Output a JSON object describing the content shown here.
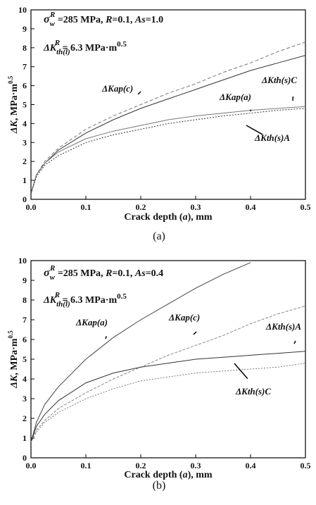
{
  "chart_data": [
    {
      "type": "line",
      "caption": "(a)",
      "x_label_parts": [
        "Crack depth (",
        "a",
        "), mm"
      ],
      "y_label_parts": [
        "ΔK",
        ", MPa·m",
        "0.5"
      ],
      "annotations": [
        {
          "parts": [
            "σ",
            "w",
            "R",
            " =285 MPa, ",
            "R",
            "=0.1, ",
            "As",
            "=1.0"
          ]
        },
        {
          "parts": [
            "ΔK",
            "th(l)",
            "R",
            " = 6.3 MPa·m",
            "0.5"
          ]
        }
      ],
      "x": [
        0,
        0.01,
        0.025,
        0.05,
        0.1,
        0.15,
        0.2,
        0.25,
        0.3,
        0.35,
        0.4,
        0.45,
        0.5
      ],
      "series": [
        {
          "name": "ΔKap(c)",
          "color": "#777777",
          "values": [
            0.3,
            1.3,
            2.0,
            2.7,
            3.7,
            4.4,
            5.0,
            5.6,
            6.1,
            6.7,
            7.2,
            7.8,
            8.3
          ]
        },
        {
          "name": "ΔKth(s)C",
          "color": "#333333",
          "values": [
            0.3,
            1.3,
            1.9,
            2.6,
            3.5,
            4.2,
            4.8,
            5.3,
            5.8,
            6.3,
            6.8,
            7.2,
            7.6
          ]
        },
        {
          "name": "ΔKap(a)",
          "color": "#777777",
          "values": [
            0.3,
            1.3,
            1.9,
            2.5,
            3.2,
            3.6,
            3.9,
            4.2,
            4.4,
            4.55,
            4.7,
            4.8,
            4.9
          ]
        },
        {
          "name": "ΔKth(s)A",
          "color": "#333333",
          "values": [
            0.3,
            1.2,
            1.8,
            2.3,
            3.0,
            3.4,
            3.7,
            4.0,
            4.2,
            4.4,
            4.55,
            4.7,
            4.8
          ]
        }
      ],
      "xlim": [
        0,
        0.5
      ],
      "ylim": [
        0,
        10
      ],
      "xticks": [
        {
          "value": 0,
          "label": "0.0"
        },
        0.1,
        0.2,
        0.3,
        0.4,
        0.5
      ],
      "yticks": [
        0,
        1,
        2,
        3,
        4,
        5,
        6,
        7,
        8,
        9,
        10
      ]
    },
    {
      "type": "line",
      "caption": "(b)",
      "x_label_parts": [
        "Crack depth (",
        "a",
        "), mm"
      ],
      "y_label_parts": [
        "ΔK",
        ", MPa·m",
        "0.5"
      ],
      "annotations": [
        {
          "parts": [
            "σ",
            "w",
            "R",
            " =285 MPa, ",
            "R",
            "=0.1, ",
            "As",
            "=0.4"
          ]
        },
        {
          "parts": [
            "ΔK",
            "th(l)",
            "R",
            " = 6.3 MPa·m",
            "0.5"
          ]
        }
      ],
      "x": [
        0,
        0.01,
        0.025,
        0.05,
        0.1,
        0.15,
        0.2,
        0.25,
        0.3,
        0.35,
        0.4,
        0.45,
        0.5
      ],
      "series": [
        {
          "name": "ΔKap(a)",
          "color": "#444444",
          "values": [
            0.8,
            1.8,
            2.7,
            3.6,
            5.0,
            6.1,
            7.0,
            7.8,
            8.6,
            9.3,
            9.9,
            null,
            null
          ]
        },
        {
          "name": "ΔKap(c)",
          "color": "#888888",
          "values": [
            0.8,
            1.4,
            1.9,
            2.5,
            3.3,
            4.0,
            4.6,
            5.2,
            5.7,
            6.2,
            6.8,
            7.3,
            7.7
          ]
        },
        {
          "name": "ΔKth(s)A",
          "color": "#333333",
          "values": [
            0.8,
            1.6,
            2.2,
            2.9,
            3.8,
            4.3,
            4.6,
            4.8,
            5.0,
            5.1,
            5.2,
            5.3,
            5.4
          ]
        },
        {
          "name": "ΔKth(s)C",
          "color": "#777777",
          "values": [
            0.8,
            1.3,
            1.8,
            2.3,
            3.0,
            3.5,
            3.9,
            4.1,
            4.3,
            4.4,
            4.5,
            4.6,
            4.8
          ]
        }
      ],
      "xlim": [
        0,
        0.5
      ],
      "ylim": [
        0,
        10
      ],
      "xticks": [
        {
          "value": 0,
          "label": "0.0"
        },
        0.1,
        0.2,
        0.3,
        0.4,
        0.5
      ],
      "yticks": [
        0,
        1,
        2,
        3,
        4,
        5,
        6,
        7,
        8,
        9,
        10
      ]
    }
  ]
}
